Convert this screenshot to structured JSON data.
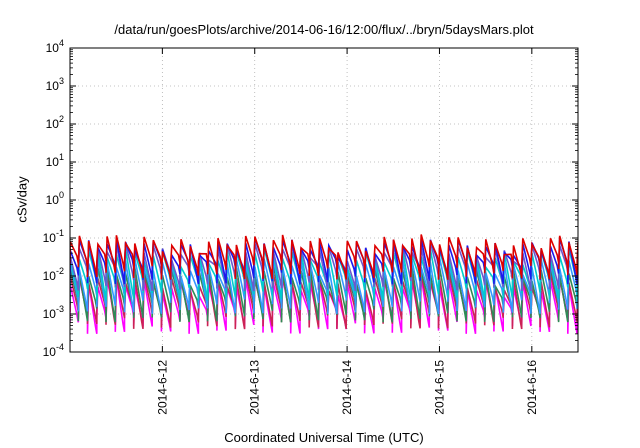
{
  "chart_data": {
    "type": "line",
    "title": "/data/run/goesPlots/archive/2014-06-16/12:00/flux/../bryn/5daysMars.plot",
    "xlabel": "Coordinated Universal Time (UTC)",
    "ylabel": "cSv/day",
    "yscale": "log",
    "ylim": [
      0.0001,
      10000
    ],
    "y_ticks": [
      0.0001,
      0.001,
      0.01,
      0.1,
      1,
      10,
      100,
      1000,
      10000
    ],
    "x_tick_labels": [
      "2014-6-12",
      "2014-6-13",
      "2014-6-14",
      "2014-6-15",
      "2014-6-16"
    ],
    "x_tick_days": [
      1,
      2,
      3,
      4,
      5
    ],
    "xlim_days": [
      0,
      5.5
    ],
    "grid": true,
    "cycle_period_days": 0.1,
    "series": [
      {
        "color": "#ff00ff",
        "peak": 0.006,
        "trough": 0.0006
      },
      {
        "color": "#cc2255",
        "peak": 0.008,
        "trough": 0.0008
      },
      {
        "color": "#2e8b57",
        "peak": 0.012,
        "trough": 0.0012
      },
      {
        "color": "#3399ff",
        "peak": 0.02,
        "trough": 0.002
      },
      {
        "color": "#00cccc",
        "peak": 0.035,
        "trough": 0.0045
      },
      {
        "color": "#6a5acd",
        "peak": 0.05,
        "trough": 0.008
      },
      {
        "color": "#1a1aee",
        "peak": 0.065,
        "trough": 0.012
      },
      {
        "color": "#dd0000",
        "peak": 0.08,
        "trough": 0.016
      }
    ]
  }
}
